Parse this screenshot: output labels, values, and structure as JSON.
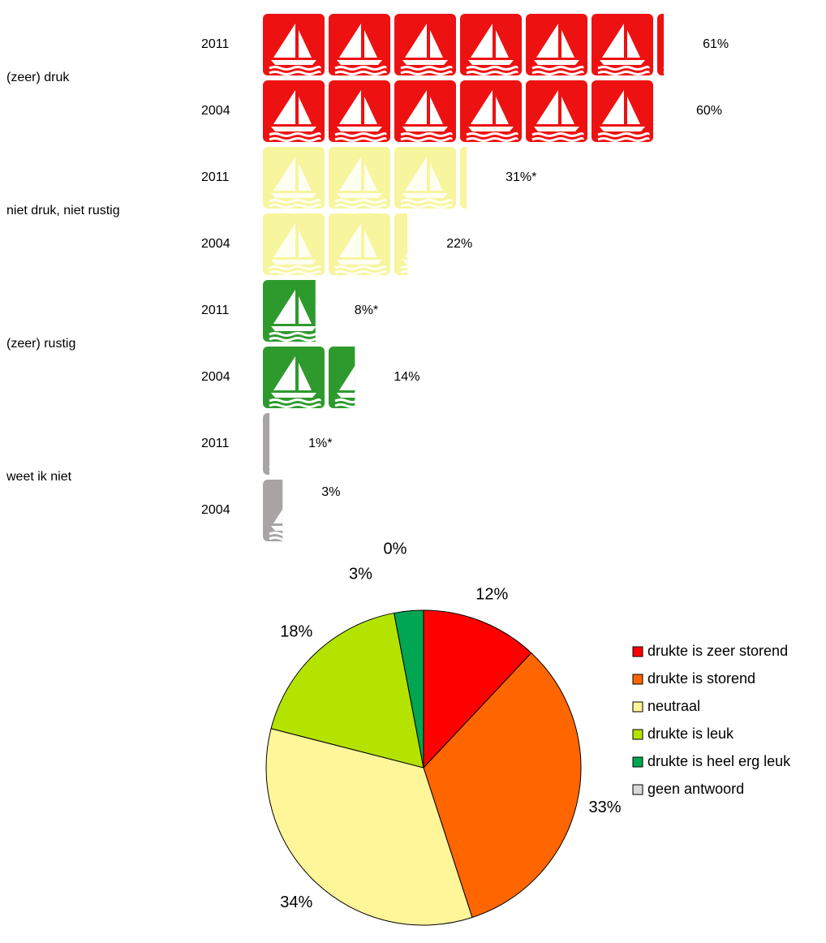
{
  "chart_data": [
    {
      "type": "pictograph",
      "categories": [
        "(zeer) druk",
        "niet druk, niet rustig",
        "(zeer) rustig",
        "weet ik niet"
      ],
      "colors": [
        "#ee1111",
        "#f7f59e",
        "#2e9a2e",
        "#a8a4a4"
      ],
      "series": [
        {
          "name": "2011",
          "values": [
            61,
            31,
            8,
            1
          ],
          "value_labels": [
            "61%",
            "31%*",
            "8%*",
            "1%*"
          ]
        },
        {
          "name": "2004",
          "values": [
            60,
            22,
            14,
            3
          ],
          "value_labels": [
            "60%",
            "22%",
            "14%",
            "3%"
          ]
        }
      ]
    },
    {
      "type": "pie",
      "categories": [
        "drukte is zeer storend",
        "drukte is storend",
        "neutraal",
        "drukte is leuk",
        "drukte is heel erg leuk",
        "geen antwoord"
      ],
      "values": [
        12,
        33,
        34,
        18,
        3,
        0
      ],
      "value_labels": [
        "12%",
        "33%",
        "34%",
        "18%",
        "3%",
        "0%"
      ],
      "colors": [
        "#ff0000",
        "#ff6600",
        "#fff599",
        "#b5e300",
        "#00a651",
        "#d9d9d9"
      ]
    }
  ]
}
